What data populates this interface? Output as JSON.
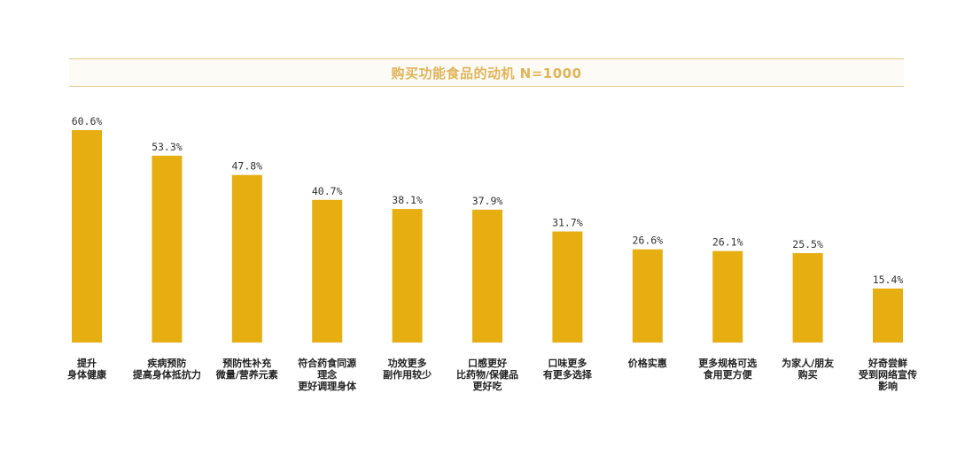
{
  "chart_data": {
    "type": "bar",
    "title": "购买功能食品的动机 N=1000",
    "xlabel": "",
    "ylabel": "",
    "ylim": [
      0,
      70
    ],
    "grid": false,
    "value_suffix": "%",
    "bar_color": "#e6ae10",
    "categories": [
      [
        "提升",
        "身体健康"
      ],
      [
        "疾病预防",
        "提高身体抵抗力"
      ],
      [
        "预防性补充",
        "微量/营养元素"
      ],
      [
        "符合药食同源",
        "理念",
        "更好调理身体"
      ],
      [
        "功效更多",
        "副作用较少"
      ],
      [
        "口感更好",
        "比药物/保健品",
        "更好吃"
      ],
      [
        "口味更多",
        "有更多选择"
      ],
      [
        "价格实惠"
      ],
      [
        "更多规格可选",
        "食用更方便"
      ],
      [
        "为家人/朋友",
        "购买"
      ],
      [
        "好奇尝鲜",
        "受到网络宣传",
        "影响"
      ]
    ],
    "values": [
      60.6,
      53.3,
      47.8,
      40.7,
      38.1,
      37.9,
      31.7,
      26.6,
      26.1,
      25.5,
      15.4
    ],
    "value_labels": [
      "60.6%",
      "53.3%",
      "47.8%",
      "40.7%",
      "38.1%",
      "37.9%",
      "31.7%",
      "26.6%",
      "26.1%",
      "25.5%",
      "15.4%"
    ]
  }
}
